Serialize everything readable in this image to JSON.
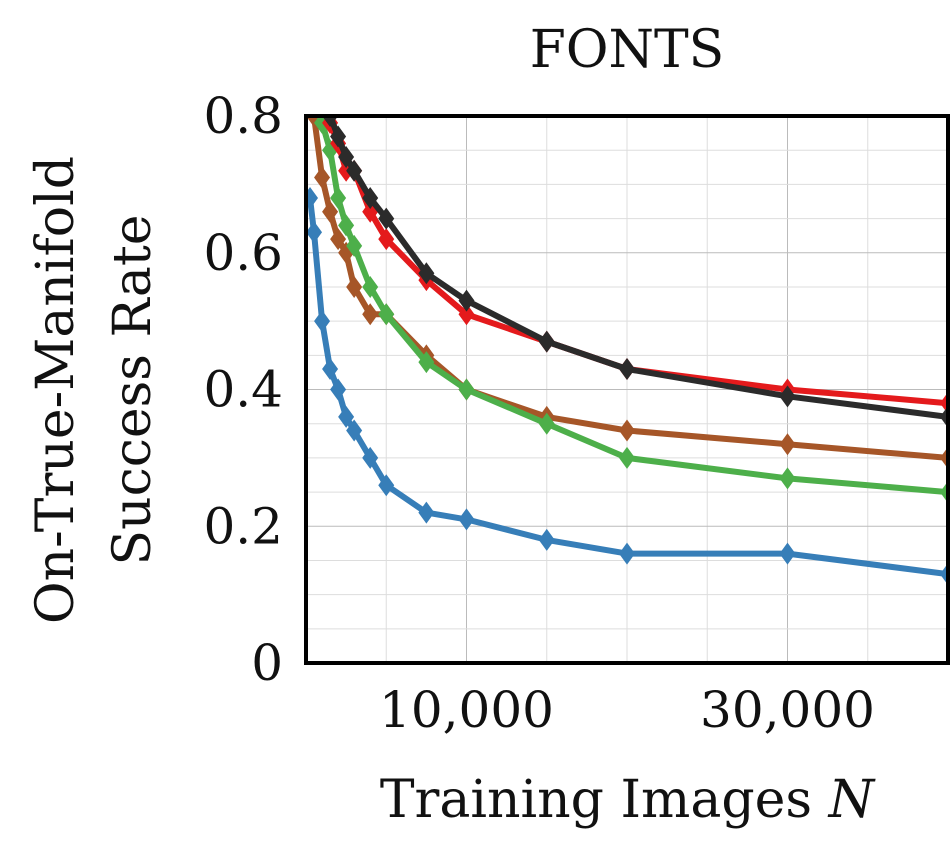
{
  "chart_data": {
    "type": "line",
    "title": "FONTS",
    "xlabel": "Training Images",
    "xlabel_var": "N",
    "ylabel": [
      "On-True-Manifold",
      "Success Rate"
    ],
    "xlim": [
      0,
      40000
    ],
    "ylim": [
      0,
      0.8
    ],
    "xticks": [
      10000,
      30000
    ],
    "xtick_labels": [
      "10,000",
      "30,000"
    ],
    "yticks": [
      0,
      0.2,
      0.4,
      0.6,
      0.8
    ],
    "ytick_labels": [
      "0",
      "0.2",
      "0.4",
      "0.6",
      "0.8"
    ],
    "grid": true,
    "series": [
      {
        "color": "#2b2b2b",
        "x": [
          500,
          1000,
          1500,
          2000,
          2500,
          3000,
          4000,
          5000,
          7500,
          10000,
          15000,
          20000,
          30000,
          40000
        ],
        "y": [
          0.88,
          0.83,
          0.8,
          0.77,
          0.74,
          0.72,
          0.68,
          0.65,
          0.57,
          0.53,
          0.47,
          0.43,
          0.39,
          0.36
        ]
      },
      {
        "color": "#e41a1c",
        "x": [
          500,
          1000,
          1500,
          2000,
          2500,
          3000,
          4000,
          5000,
          7500,
          10000,
          15000,
          20000,
          30000,
          40000
        ],
        "y": [
          0.86,
          0.82,
          0.79,
          0.76,
          0.72,
          0.72,
          0.66,
          0.62,
          0.56,
          0.51,
          0.47,
          0.43,
          0.4,
          0.38
        ]
      },
      {
        "color": "#4daf4a",
        "x": [
          500,
          1000,
          1500,
          2000,
          2500,
          3000,
          4000,
          5000,
          7500,
          10000,
          15000,
          20000,
          30000,
          40000
        ],
        "y": [
          0.83,
          0.79,
          0.75,
          0.68,
          0.64,
          0.61,
          0.55,
          0.51,
          0.44,
          0.4,
          0.35,
          0.3,
          0.27,
          0.25
        ]
      },
      {
        "color": "#a65628",
        "x": [
          500,
          1000,
          1500,
          2000,
          2500,
          3000,
          4000,
          5000,
          7500,
          10000,
          15000,
          20000,
          30000,
          40000
        ],
        "y": [
          0.8,
          0.71,
          0.66,
          0.62,
          0.6,
          0.55,
          0.51,
          0.51,
          0.45,
          0.4,
          0.36,
          0.34,
          0.32,
          0.3
        ]
      },
      {
        "color": "#377eb8",
        "x": [
          250,
          500,
          1000,
          1500,
          2000,
          2500,
          3000,
          4000,
          5000,
          7500,
          10000,
          15000,
          20000,
          30000,
          40000
        ],
        "y": [
          0.68,
          0.63,
          0.5,
          0.43,
          0.4,
          0.36,
          0.34,
          0.3,
          0.26,
          0.22,
          0.21,
          0.18,
          0.16,
          0.16,
          0.13
        ]
      }
    ]
  }
}
